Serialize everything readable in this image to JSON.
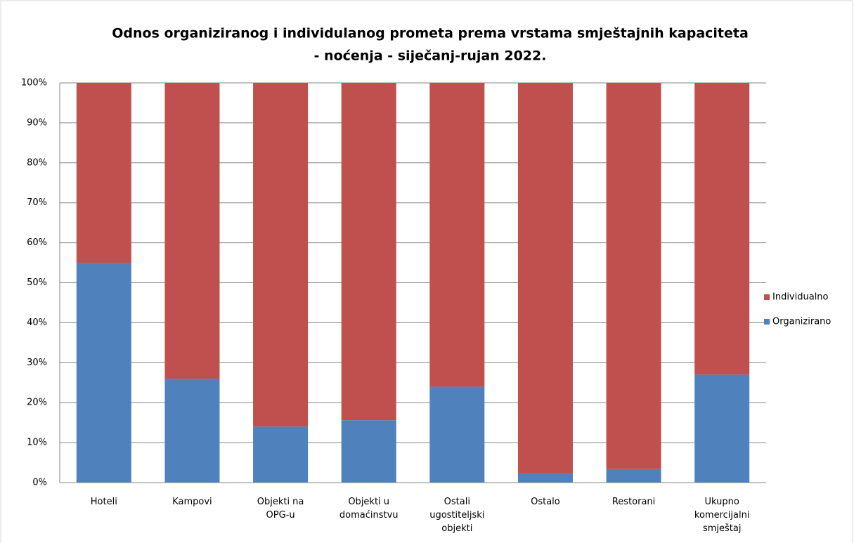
{
  "chart_data": {
    "type": "stacked_bar",
    "title": [
      "Odnos organiziranog i individulanog prometa prema vrstama smještajnih kapaciteta",
      "- noćenja - siječanj-rujan 2022."
    ],
    "categories": [
      "Hoteli",
      "Kampovi",
      "Objekti na OPG-u",
      "Objekti u domaćinstvu",
      "Ostali ugostiteljski objekti",
      "Ostalo",
      "Restorani",
      "Ukupno komercijalni smještaj"
    ],
    "series": [
      {
        "name": "Organizirano",
        "color": "#4f81bd",
        "values": [
          55,
          26,
          14,
          15.6,
          24,
          2.3,
          3.4,
          27
        ]
      },
      {
        "name": "Individualno",
        "color": "#c0504d",
        "values": [
          45,
          74,
          86,
          84.4,
          76,
          97.7,
          96.6,
          73
        ]
      }
    ],
    "ylim": [
      0,
      100
    ],
    "yticks": [
      {
        "value": 0,
        "label": "0%"
      },
      {
        "value": 10,
        "label": "10%"
      },
      {
        "value": 20,
        "label": "20%"
      },
      {
        "value": 30,
        "label": "30%"
      },
      {
        "value": 40,
        "label": "40%"
      },
      {
        "value": 50,
        "label": "50%"
      },
      {
        "value": 60,
        "label": "60%"
      },
      {
        "value": 70,
        "label": "70%"
      },
      {
        "value": 80,
        "label": "80%"
      },
      {
        "value": 90,
        "label": "90%"
      },
      {
        "value": 100,
        "label": "100%"
      }
    ],
    "grid": true,
    "legend": "right"
  }
}
